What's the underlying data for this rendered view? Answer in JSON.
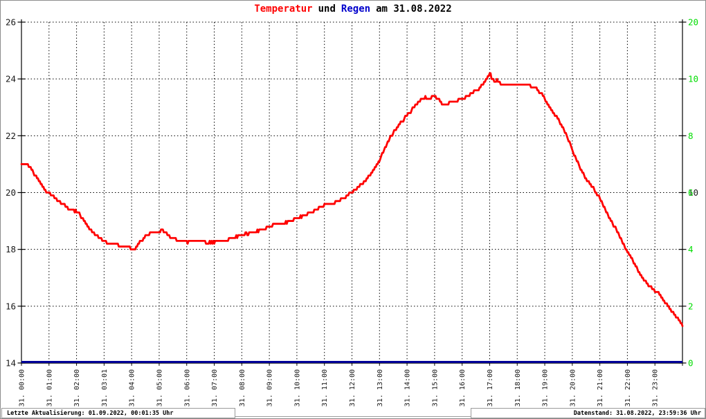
{
  "title": {
    "part1": "Temperatur",
    "part2": "und",
    "part3": "Regen",
    "part4": "am 31.08.2022"
  },
  "colors": {
    "temperature_curve": "#ff0000",
    "rain_line": "#000099",
    "right_axis_label": "#00dd00",
    "axis_and_grid": "#000000",
    "frame": "#8c8c8c",
    "title_regen": "#0000cc"
  },
  "left_axis": {
    "labels": [
      "26",
      "24",
      "22",
      "20",
      "18",
      "16",
      "14"
    ],
    "min": 14,
    "max": 26
  },
  "right_axis": {
    "labels": [
      "20",
      "10",
      "8",
      "6",
      "4",
      "2",
      "0"
    ],
    "overlap": {
      "hidden_label": "10",
      "row": 3
    }
  },
  "x_axis": {
    "labels": [
      "31. 00:00",
      "31. 01:00",
      "31. 02:00",
      "31. 03:01",
      "31. 04:00",
      "31. 05:00",
      "31. 06:00",
      "31. 07:00",
      "31. 08:00",
      "31. 09:00",
      "31. 10:00",
      "31. 11:00",
      "31. 12:00",
      "31. 13:00",
      "31. 14:00",
      "31. 15:00",
      "31. 16:00",
      "31. 17:00",
      "31. 18:00",
      "31. 19:00",
      "31. 20:00",
      "31. 21:00",
      "31. 22:00",
      "31. 23:00"
    ]
  },
  "status_bar": {
    "left": "Letzte Aktualisierung: 01.09.2022, 00:01:35 Uhr",
    "right": "Datenstand: 31.08.2022, 23:59:36 Uhr"
  },
  "chart_data": {
    "type": "line",
    "title": "Temperatur und Regen am 31.08.2022",
    "grid": "dashed",
    "left_ylim": [
      14,
      26
    ],
    "left_yticks": [
      26,
      24,
      22,
      20,
      18,
      16,
      14
    ],
    "right_yticks_nonlinear": [
      20,
      10,
      8,
      6,
      4,
      2,
      0
    ],
    "x_range_hours": [
      0,
      24
    ],
    "x_tick_interval_hours": 1,
    "series": [
      {
        "name": "Temperatur",
        "unit": "degC",
        "color": "#ff0000",
        "axis": "left",
        "x_hours": [
          0.0,
          0.2,
          0.35,
          0.5,
          0.7,
          0.9,
          1.0,
          1.15,
          1.3,
          1.5,
          1.7,
          1.9,
          2.1,
          2.3,
          2.5,
          2.7,
          2.9,
          3.1,
          3.4,
          3.6,
          3.8,
          4.0,
          4.1,
          4.25,
          4.5,
          4.75,
          5.0,
          5.1,
          5.25,
          5.45,
          5.7,
          6.0,
          6.4,
          6.8,
          7.2,
          7.5,
          8.0,
          8.4,
          8.8,
          9.1,
          9.3,
          9.45,
          9.7,
          10.0,
          10.4,
          10.8,
          11.0,
          11.4,
          11.7,
          12.0,
          12.3,
          12.6,
          12.8,
          13.0,
          13.2,
          13.4,
          13.6,
          13.8,
          14.0,
          14.2,
          14.4,
          14.6,
          14.8,
          15.0,
          15.15,
          15.3,
          15.5,
          15.7,
          16.0,
          16.2,
          16.4,
          16.6,
          16.8,
          17.0,
          17.1,
          17.2,
          17.3,
          17.45,
          17.6,
          17.8,
          18.0,
          18.3,
          18.5,
          18.7,
          18.9,
          19.0,
          19.2,
          19.4,
          19.6,
          19.8,
          20.0,
          20.2,
          20.4,
          20.6,
          20.8,
          21.0,
          21.2,
          21.4,
          21.6,
          21.8,
          22.0,
          22.2,
          22.4,
          22.6,
          22.8,
          23.0,
          23.15,
          23.3,
          23.45,
          23.6,
          23.75,
          23.9,
          24.0
        ],
        "values": [
          21.0,
          21.0,
          20.85,
          20.6,
          20.3,
          20.05,
          20.0,
          19.9,
          19.75,
          19.6,
          19.45,
          19.37,
          19.25,
          18.95,
          18.7,
          18.5,
          18.35,
          18.25,
          18.2,
          18.12,
          18.1,
          18.02,
          17.98,
          18.2,
          18.45,
          18.6,
          18.62,
          18.68,
          18.55,
          18.42,
          18.3,
          18.26,
          18.3,
          18.25,
          18.28,
          18.35,
          18.5,
          18.6,
          18.72,
          18.85,
          18.92,
          18.85,
          18.98,
          19.1,
          19.25,
          19.45,
          19.55,
          19.65,
          19.8,
          20.05,
          20.25,
          20.55,
          20.8,
          21.15,
          21.6,
          21.95,
          22.25,
          22.5,
          22.7,
          22.95,
          23.2,
          23.35,
          23.3,
          23.37,
          23.3,
          23.1,
          23.15,
          23.2,
          23.3,
          23.4,
          23.55,
          23.65,
          23.85,
          24.2,
          24.0,
          23.9,
          23.95,
          23.75,
          23.8,
          23.85,
          23.8,
          23.8,
          23.75,
          23.65,
          23.45,
          23.3,
          23.0,
          22.7,
          22.4,
          22.0,
          21.5,
          21.05,
          20.65,
          20.35,
          20.1,
          19.8,
          19.4,
          19.0,
          18.7,
          18.3,
          17.95,
          17.6,
          17.25,
          16.95,
          16.7,
          16.55,
          16.45,
          16.25,
          16.05,
          15.85,
          15.65,
          15.45,
          15.35
        ]
      },
      {
        "name": "Regen",
        "unit": "mm",
        "color": "#000099",
        "axis": "right",
        "x_hours": [
          0,
          24
        ],
        "values": [
          0,
          0
        ]
      }
    ]
  }
}
